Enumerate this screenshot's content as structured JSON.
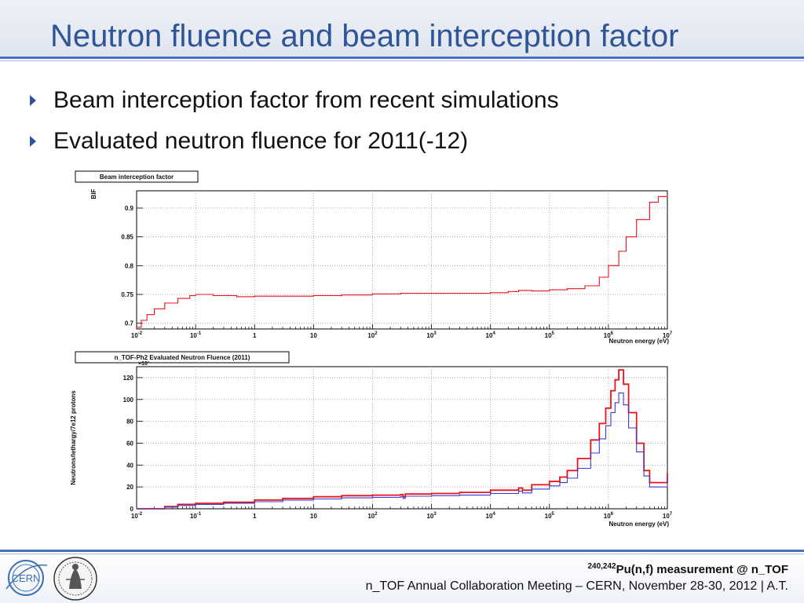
{
  "slide": {
    "title": "Neutron fluence and beam interception factor",
    "bullets": [
      "Beam interception factor from recent simulations",
      "Evaluated neutron fluence for 2011(-12)"
    ]
  },
  "footer": {
    "isotope_superscript": "240,242",
    "measurement": "Pu(n,f) measurement @ n_TOF",
    "meeting": "n_TOF Annual Collaboration Meeting – CERN, November 28-30, 2012 | A.T."
  },
  "logos": {
    "left": "CERN",
    "right": "seal"
  },
  "colors": {
    "title": "#2f5597",
    "rule": "#4472c4",
    "series_red": "#e8141c",
    "series_blue": "#3a3ad6"
  },
  "chart_data": [
    {
      "type": "line",
      "title": "Beam interception factor",
      "ylabel": "BIF",
      "xlabel": "Neutron energy (eV)",
      "x_scale": "log",
      "x_range": [
        0.01,
        10000000
      ],
      "ylim": [
        0.69,
        0.93
      ],
      "grid": true,
      "x_tick_labels": [
        {
          "value": 0.01,
          "base": "10",
          "exp": "-2"
        },
        {
          "value": 0.1,
          "base": "10",
          "exp": "-1"
        },
        {
          "value": 1,
          "base": "1",
          "exp": ""
        },
        {
          "value": 10,
          "base": "10",
          "exp": ""
        },
        {
          "value": 100,
          "base": "10",
          "exp": "2"
        },
        {
          "value": 1000,
          "base": "10",
          "exp": "3"
        },
        {
          "value": 10000,
          "base": "10",
          "exp": "4"
        },
        {
          "value": 100000,
          "base": "10",
          "exp": "5"
        },
        {
          "value": 1000000,
          "base": "10",
          "exp": "6"
        },
        {
          "value": 10000000,
          "base": "10",
          "exp": "7"
        }
      ],
      "y_tick_labels": [
        "0.7",
        "0.75",
        "0.8",
        "0.85",
        "0.9"
      ],
      "y_tick_values": [
        0.7,
        0.75,
        0.8,
        0.85,
        0.9
      ],
      "series": [
        {
          "color": "#e8141c",
          "x": [
            0.01,
            0.012,
            0.015,
            0.02,
            0.03,
            0.05,
            0.08,
            0.1,
            0.2,
            0.5,
            1,
            3,
            10,
            30,
            100,
            300,
            1000,
            3000,
            10000,
            20000,
            30000,
            50000,
            100000,
            200000,
            400000,
            700000,
            1000000,
            1500000,
            2000000,
            3000000,
            5000000,
            7000000,
            10000000
          ],
          "y": [
            0.693,
            0.705,
            0.715,
            0.725,
            0.735,
            0.743,
            0.748,
            0.75,
            0.748,
            0.746,
            0.747,
            0.747,
            0.748,
            0.749,
            0.751,
            0.752,
            0.752,
            0.752,
            0.753,
            0.755,
            0.757,
            0.756,
            0.758,
            0.76,
            0.765,
            0.78,
            0.8,
            0.825,
            0.85,
            0.88,
            0.91,
            0.92,
            0.922
          ]
        }
      ]
    },
    {
      "type": "line",
      "title": "n_TOF-Ph2 Evaluated Neutron Fluence (2011)",
      "ylabel": "Neutrons/lethargy/7e12 protons",
      "xlabel": "Neutron energy (eV)",
      "y_multiplier": "×10³",
      "x_scale": "log",
      "x_range": [
        0.01,
        10000000
      ],
      "ylim": [
        0,
        130
      ],
      "grid": true,
      "x_tick_labels": [
        {
          "value": 0.01,
          "base": "10",
          "exp": "-2"
        },
        {
          "value": 0.1,
          "base": "10",
          "exp": "-1"
        },
        {
          "value": 1,
          "base": "1",
          "exp": ""
        },
        {
          "value": 10,
          "base": "10",
          "exp": ""
        },
        {
          "value": 100,
          "base": "10",
          "exp": "2"
        },
        {
          "value": 1000,
          "base": "10",
          "exp": "3"
        },
        {
          "value": 10000,
          "base": "10",
          "exp": "4"
        },
        {
          "value": 100000,
          "base": "10",
          "exp": "5"
        },
        {
          "value": 1000000,
          "base": "10",
          "exp": "6"
        },
        {
          "value": 10000000,
          "base": "10",
          "exp": "7"
        }
      ],
      "y_tick_labels": [
        "0",
        "20",
        "40",
        "60",
        "80",
        "100",
        "120"
      ],
      "y_tick_values": [
        0,
        20,
        40,
        60,
        80,
        100,
        120
      ],
      "series": [
        {
          "color": "#e8141c",
          "x": [
            0.01,
            0.02,
            0.03,
            0.05,
            0.1,
            0.3,
            1,
            3,
            10,
            30,
            100,
            300,
            330,
            360,
            1000,
            3000,
            10000,
            30000,
            35000,
            50000,
            100000,
            150000,
            200000,
            300000,
            500000,
            700000,
            900000,
            1100000,
            1300000,
            1500000,
            1800000,
            2200000,
            3000000,
            4000000,
            5000000,
            7000000,
            10000000
          ],
          "y": [
            0,
            0,
            2,
            4,
            5,
            6,
            8,
            9.5,
            11,
            12,
            12.5,
            13,
            11,
            13.5,
            14,
            15,
            17,
            19,
            17,
            22,
            25,
            29,
            35,
            46,
            63,
            78,
            92,
            108,
            118,
            127,
            114,
            88,
            60,
            35,
            24,
            24,
            33
          ]
        },
        {
          "color": "#3a3ad6",
          "x": [
            0.01,
            0.02,
            0.03,
            0.05,
            0.1,
            0.3,
            1,
            3,
            10,
            30,
            100,
            300,
            330,
            360,
            1000,
            3000,
            10000,
            30000,
            35000,
            50000,
            100000,
            150000,
            200000,
            300000,
            500000,
            700000,
            900000,
            1100000,
            1300000,
            1500000,
            1800000,
            2200000,
            3000000,
            4000000,
            5000000,
            7000000,
            10000000
          ],
          "y": [
            0,
            0,
            1.5,
            3,
            4,
            5,
            6.5,
            8,
            9,
            10,
            10.5,
            11,
            9.5,
            11.5,
            12,
            12.5,
            14,
            16,
            14.5,
            18,
            21,
            24,
            28,
            37,
            51,
            64,
            76,
            88,
            97,
            106,
            95,
            74,
            52,
            30,
            20,
            20,
            28
          ]
        }
      ]
    }
  ]
}
